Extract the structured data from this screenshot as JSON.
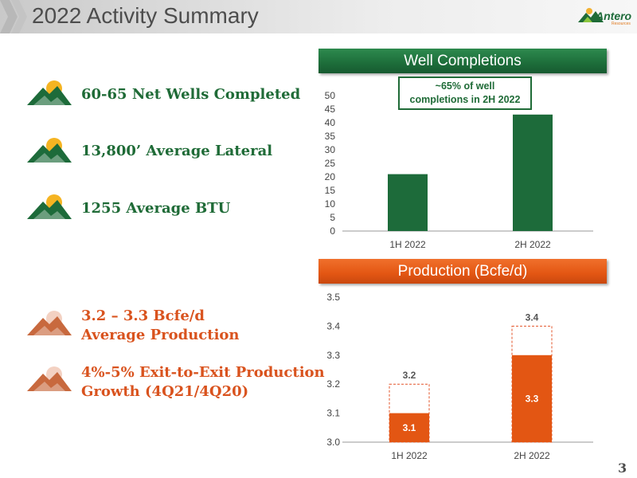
{
  "header": {
    "title": "2022 Activity Summary",
    "logo_text": "Antero",
    "logo_subtext": "Resources"
  },
  "bullets": [
    {
      "text": "60-65 Net Wells Completed",
      "color": "green",
      "icon": "mountain-sun-icon"
    },
    {
      "text": "13,800’ Average Lateral",
      "color": "green",
      "icon": "mountain-sun-icon"
    },
    {
      "text": "1255 Average BTU",
      "color": "green",
      "icon": "mountain-sun-icon"
    },
    {
      "text_lines": [
        "3.2 – 3.3 Bcfe/d",
        "Average Production"
      ],
      "color": "orange",
      "icon": "mountain-sun-icon"
    },
    {
      "text_lines": [
        "4%-5% Exit-to-Exit Production",
        "Growth (4Q21/4Q20)"
      ],
      "color": "orange",
      "icon": "mountain-sun-icon"
    }
  ],
  "colors": {
    "green": "#1d6b3a",
    "orange": "#e35613",
    "axis": "#999999",
    "dashed": "#e3552b"
  },
  "chart_data": [
    {
      "type": "bar",
      "title": "Well Completions",
      "categories": [
        "1H 2022",
        "2H 2022"
      ],
      "values": [
        21,
        43
      ],
      "ylim": [
        0,
        50
      ],
      "yticks": [
        0,
        5,
        10,
        15,
        20,
        25,
        30,
        35,
        40,
        45,
        50
      ],
      "annotation": "~65% of well completions in 2H 2022",
      "annotation_lines": [
        "~65% of well",
        "completions in 2H 2022"
      ],
      "grid": false,
      "color": "#1d6b3a"
    },
    {
      "type": "bar",
      "title": "Production (Bcfe/d)",
      "categories": [
        "1H 2022",
        "2H 2022"
      ],
      "series": [
        {
          "name": "",
          "values": [
            3.1,
            3.3
          ],
          "labels": [
            "3.1",
            "3.3"
          ]
        },
        {
          "name": "",
          "values": [
            3.2,
            3.4
          ],
          "labels": [
            "3.2",
            "3.4"
          ],
          "style": "dashed-outline"
        }
      ],
      "ylim": [
        3.0,
        3.5
      ],
      "yticks": [
        "3.0",
        "3.1",
        "3.2",
        "3.3",
        "3.4",
        "3.5"
      ],
      "grid": false,
      "color": "#e35613"
    }
  ],
  "page_number": "3"
}
